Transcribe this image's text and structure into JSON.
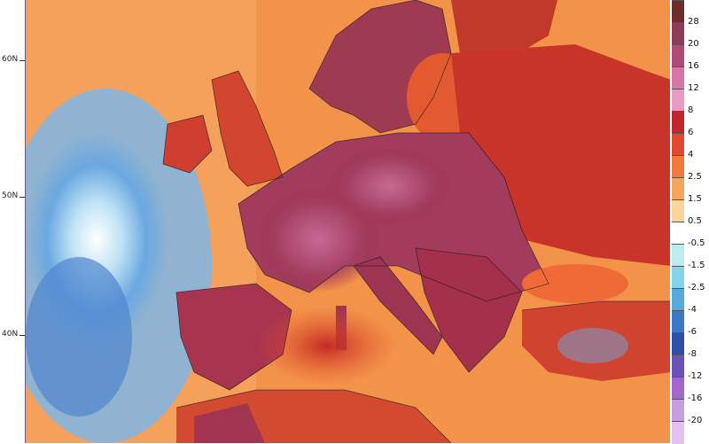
{
  "map": {
    "latitude_labels": [
      "60N",
      "50N",
      "40N"
    ],
    "colors": {
      "ocean_warm": "#f08a3c",
      "ocean_very_warm": "#d83a25",
      "land_hot": "#9e2a4a",
      "land_very_hot": "#c0567e",
      "cold_anomaly": "#5f9fdc",
      "neutral": "#ffffff"
    }
  },
  "colorbar": {
    "labels": [
      "28",
      "20",
      "16",
      "12",
      "8",
      "6",
      "4",
      "2.5",
      "1.5",
      "0.5",
      "-0.5",
      "-1.5",
      "-2.5",
      "-4",
      "-6",
      "-8",
      "-12",
      "-16",
      "-20"
    ],
    "colors": [
      "#6e2c2c",
      "#8e3a5a",
      "#b04b78",
      "#d675a6",
      "#e89bc3",
      "#c0272d",
      "#e0492f",
      "#f07a3a",
      "#f6a55a",
      "#fbd69a",
      "#ffffff",
      "#bdebf0",
      "#84d4ea",
      "#56a9dd",
      "#3c76c6",
      "#2e4fa8",
      "#6a52b8",
      "#a266cc",
      "#c89ee0",
      "#e3c2ef"
    ]
  }
}
